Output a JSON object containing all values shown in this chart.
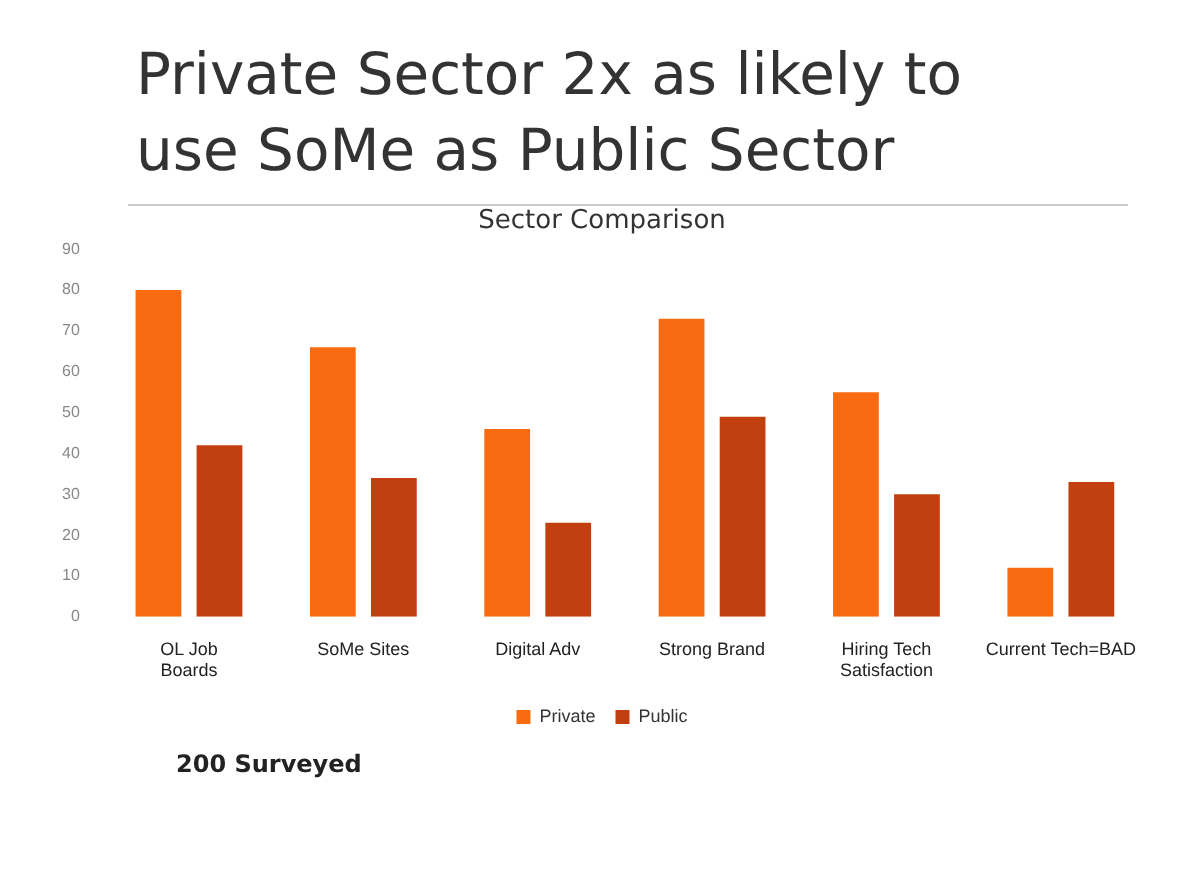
{
  "chart_data": {
    "type": "bar",
    "title": "Private Sector 2x as likely to use SoMe as Public Sector",
    "subtitle": "Sector Comparison",
    "categories": [
      "OL Job Boards",
      "SoMe Sites",
      "Digital Adv",
      "Strong Brand",
      "Hiring Tech Satisfaction",
      "Current Tech=BAD"
    ],
    "series": [
      {
        "name": "Private",
        "color": "#f86b10",
        "values": [
          80,
          66,
          46,
          73,
          55,
          12
        ]
      },
      {
        "name": "Public",
        "color": "#c2400f",
        "values": [
          42,
          34,
          23,
          49,
          30,
          33
        ]
      }
    ],
    "ylim": [
      0,
      90
    ],
    "yticks": [
      0,
      10,
      20,
      30,
      40,
      50,
      60,
      70,
      80,
      90
    ],
    "grid": false,
    "legend": "bottom",
    "annotations": [
      "200 Surveyed"
    ]
  }
}
